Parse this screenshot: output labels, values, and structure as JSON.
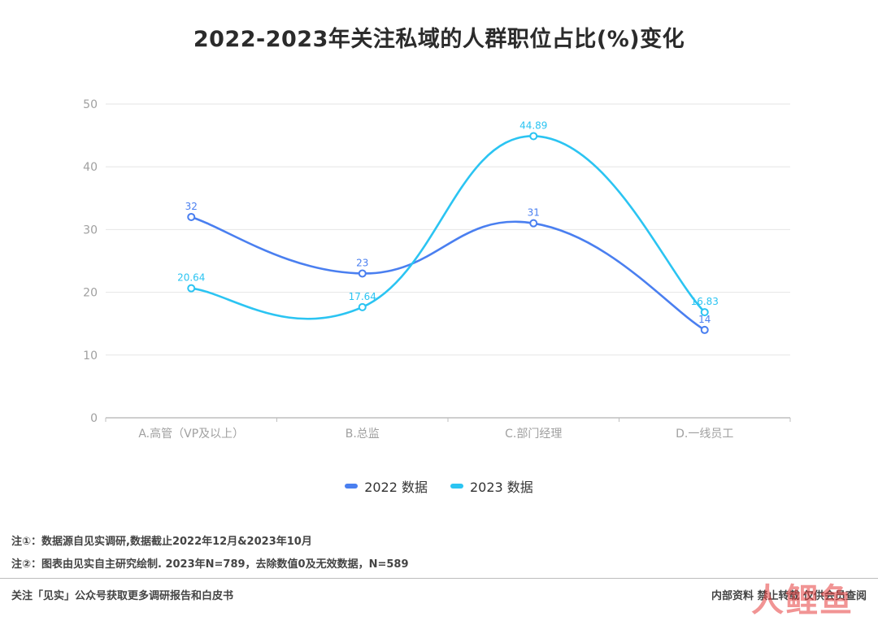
{
  "header": {
    "title": "2022-2023年关注私域的人群职位占比(%)变化"
  },
  "chart_data": {
    "type": "line",
    "smooth": true,
    "categories": [
      "A.高管（VP及以上）",
      "B.总监",
      "C.部门经理",
      "D.一线员工"
    ],
    "series": [
      {
        "name": "2022 数据",
        "values": [
          32,
          23,
          31,
          14
        ],
        "labels": [
          "32",
          "23",
          "31",
          "14"
        ],
        "color": "#4a7ff0"
      },
      {
        "name": "2023 数据",
        "values": [
          20.64,
          17.64,
          44.89,
          16.83
        ],
        "labels": [
          "20.64",
          "17.64",
          "44.89",
          "16.83"
        ],
        "color": "#2bc4f2"
      }
    ],
    "ylim": [
      0,
      50
    ],
    "yticks": [
      0,
      10,
      20,
      30,
      40,
      50
    ],
    "ytick_labels": [
      "0",
      "10",
      "20",
      "30",
      "40",
      "50"
    ],
    "grid": true,
    "legend_position": "bottom"
  },
  "notes": {
    "note1": "注①：数据源自见实调研,数据截止2022年12月&2023年10月",
    "note2": "注②：图表由见实自主研究绘制. 2023年N=789，去除数值0及无效数据，N=589"
  },
  "footer": {
    "left": "关注「见实」公众号获取更多调研报告和白皮书",
    "right": "内部资料 禁止转载 仅供会员查阅"
  },
  "watermark": {
    "text": "人鲤鱼"
  }
}
